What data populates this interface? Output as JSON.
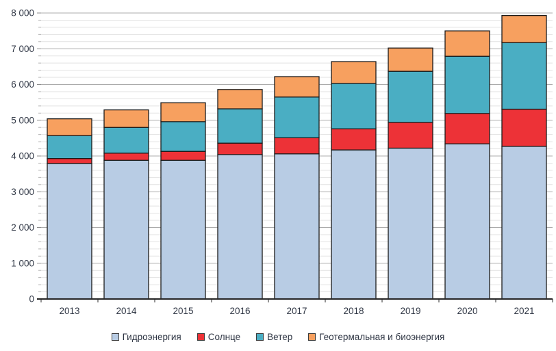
{
  "chart_data": {
    "type": "bar",
    "stacked": true,
    "categories": [
      "2013",
      "2014",
      "2015",
      "2016",
      "2017",
      "2018",
      "2019",
      "2020",
      "2021"
    ],
    "series": [
      {
        "key": "hydro",
        "name": "Гидроэнергия",
        "color": "#B8CCE4",
        "values": [
          3790,
          3880,
          3880,
          4040,
          4060,
          4170,
          4220,
          4340,
          4270
        ]
      },
      {
        "key": "solar",
        "name": "Солнце",
        "color": "#ED3237",
        "values": [
          140,
          200,
          250,
          320,
          450,
          590,
          720,
          850,
          1040
        ]
      },
      {
        "key": "wind",
        "name": "Ветер",
        "color": "#4AAEC3",
        "values": [
          640,
          720,
          830,
          960,
          1140,
          1270,
          1430,
          1600,
          1860
        ]
      },
      {
        "key": "geo_bio",
        "name": "Геотермальная и биоэнергия",
        "color": "#F7A05F",
        "values": [
          470,
          490,
          530,
          540,
          570,
          610,
          650,
          710,
          760
        ]
      }
    ],
    "totals": [
      5040,
      5290,
      5490,
      5860,
      6220,
      6640,
      7020,
      7500,
      7930
    ],
    "ylim": [
      0,
      8000
    ],
    "ytick_step": 1000,
    "ytick_minor_step": 200,
    "ytick_labels": [
      "0",
      "1 000",
      "2 000",
      "3 000",
      "4 000",
      "5 000",
      "6 000",
      "7 000",
      "8 000"
    ],
    "xtick_labels": [
      "2013",
      "2014",
      "2015",
      "2016",
      "2017",
      "2018",
      "2019",
      "2020",
      "2021"
    ],
    "legend_position": "bottom",
    "grid": true
  },
  "colors": {
    "background": "#FFFFFF",
    "grid_minor": "#E2E2E2",
    "grid_major": "#ABABAB",
    "axis_line": "#262626",
    "tick_minor": "#B3B3B3",
    "tick_major": "#8C8C8C",
    "bar_border": "#1A1A1A",
    "text": "#2F3644"
  }
}
